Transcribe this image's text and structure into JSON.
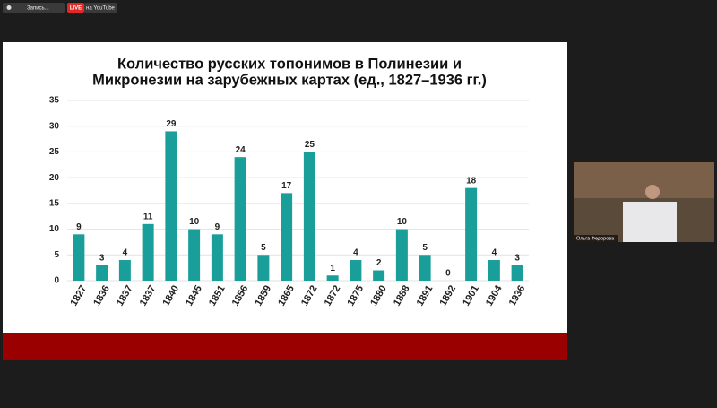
{
  "toolbar": {
    "recording": "Запись...",
    "live": "LIVE",
    "stream": "на YouTube"
  },
  "video": {
    "name": "Ольга Федорова"
  },
  "chart_data": {
    "type": "bar",
    "title": [
      "Количество русских топонимов в Полинезии и",
      "Микронезии на зарубежных картах (ед., 1827–1936 гг.)"
    ],
    "categories": [
      "1827",
      "1836",
      "1837",
      "1837",
      "1840",
      "1845",
      "1851",
      "1856",
      "1859",
      "1865",
      "1872",
      "1872",
      "1875",
      "1880",
      "1888",
      "1891",
      "1892",
      "1901",
      "1904",
      "1936"
    ],
    "values": [
      9,
      3,
      4,
      11,
      29,
      10,
      9,
      24,
      5,
      17,
      25,
      1,
      4,
      2,
      10,
      5,
      0,
      18,
      4,
      3
    ],
    "color": "#1a9e99",
    "ylim": [
      0,
      35
    ],
    "yticks": [
      0,
      5,
      10,
      15,
      20,
      25,
      30,
      35
    ],
    "grid": true
  }
}
